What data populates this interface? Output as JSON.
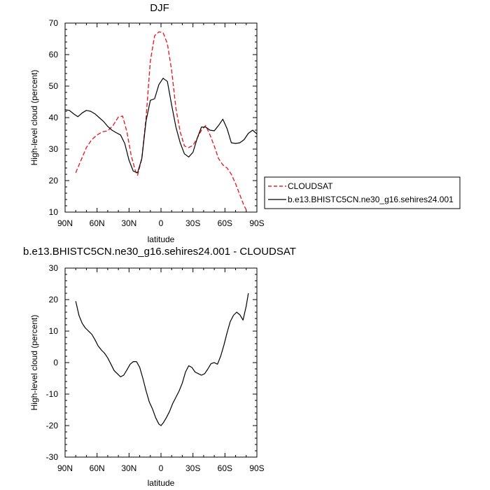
{
  "chart_data": [
    {
      "type": "line",
      "title": "DJF",
      "xlabel": "latitude",
      "ylabel": "High-level cloud (percent)",
      "xlim": [
        90,
        -90
      ],
      "ylim": [
        10,
        70
      ],
      "xticks": [
        90,
        60,
        30,
        0,
        -30,
        -60,
        -90
      ],
      "xtick_labels": [
        "90N",
        "60N",
        "30N",
        "0",
        "30S",
        "60S",
        "90S"
      ],
      "yticks": [
        10,
        20,
        30,
        40,
        50,
        60,
        70
      ],
      "ytick_labels": [
        "10",
        "20",
        "30",
        "40",
        "50",
        "60",
        "70"
      ],
      "grid": false,
      "legend_position": "right",
      "series": [
        {
          "name": "CLOUDSAT",
          "color": "#e8202a",
          "dash": "dashed",
          "x": [
            80,
            75,
            70,
            65,
            60,
            55,
            50,
            45,
            40,
            36,
            32,
            28,
            24,
            22,
            18,
            14,
            10,
            6,
            2,
            -2,
            -6,
            -10,
            -14,
            -18,
            -22,
            -26,
            -30,
            -34,
            -38,
            -42,
            -46,
            -50,
            -54,
            -58,
            -62,
            -66,
            -70,
            -74,
            -78,
            -82
          ],
          "y": [
            22.5,
            26.5,
            30.5,
            33,
            34.5,
            35.5,
            35.8,
            37.5,
            40.2,
            40.5,
            35.5,
            28,
            23,
            21.7,
            27,
            40,
            58,
            66,
            67.2,
            67,
            63.5,
            55,
            43,
            35.5,
            31,
            30.5,
            31.2,
            33.5,
            36,
            37.5,
            34.5,
            31,
            27,
            25,
            24,
            22,
            19,
            15.5,
            12,
            9.5
          ]
        },
        {
          "name": "b.e13.BHISTC5CN.ne30_g16.sehires24.001",
          "color": "#000000",
          "dash": "solid",
          "x": [
            90,
            86,
            82,
            78,
            74,
            70,
            66,
            62,
            58,
            54,
            50,
            46,
            42,
            38,
            34,
            30,
            26,
            22,
            18,
            14,
            10,
            6,
            2,
            -2,
            -6,
            -10,
            -14,
            -18,
            -22,
            -26,
            -30,
            -34,
            -38,
            -42,
            -46,
            -50,
            -54,
            -58,
            -62,
            -66,
            -70,
            -74,
            -78,
            -82,
            -86,
            -90
          ],
          "y": [
            42.5,
            42.3,
            41.2,
            40.3,
            41.5,
            42.3,
            42,
            41.2,
            40,
            38.8,
            37.2,
            36,
            35.2,
            34.5,
            31.8,
            26.5,
            23,
            22.5,
            27,
            39,
            45.5,
            46,
            50.5,
            52.5,
            51.5,
            44,
            37,
            32,
            28.5,
            27.5,
            29,
            33.5,
            37,
            37,
            36,
            35.8,
            37.5,
            39.5,
            36.5,
            32,
            31.8,
            32,
            33,
            35,
            36,
            34.8
          ]
        }
      ]
    },
    {
      "type": "line",
      "title": "b.e13.BHISTC5CN.ne30_g16.sehires24.001 - CLOUDSAT",
      "xlabel": "latitude",
      "ylabel": "High-level cloud (percent)",
      "xlim": [
        90,
        -90
      ],
      "ylim": [
        -30,
        30
      ],
      "xticks": [
        90,
        60,
        30,
        0,
        -30,
        -60,
        -90
      ],
      "xtick_labels": [
        "90N",
        "60N",
        "30N",
        "0",
        "30S",
        "60S",
        "90S"
      ],
      "yticks": [
        -30,
        -20,
        -10,
        0,
        10,
        20,
        30
      ],
      "ytick_labels": [
        "-30",
        "-20",
        "-10",
        "0",
        "10",
        "20",
        "30"
      ],
      "grid": false,
      "series": [
        {
          "color": "#000000",
          "dash": "solid",
          "x": [
            80,
            77,
            74,
            71,
            68,
            65,
            62,
            59,
            56,
            53,
            50,
            47,
            44,
            41,
            38,
            35,
            32,
            29,
            26,
            23,
            20,
            17,
            14,
            11,
            8,
            5,
            2,
            0,
            -2,
            -5,
            -8,
            -11,
            -14,
            -17,
            -20,
            -23,
            -26,
            -29,
            -32,
            -35,
            -38,
            -41,
            -44,
            -47,
            -50,
            -53,
            -56,
            -59,
            -62,
            -65,
            -68,
            -71,
            -74,
            -77,
            -80,
            -82
          ],
          "y": [
            19.5,
            15,
            12.5,
            11,
            10,
            9,
            7.3,
            5.3,
            4,
            3,
            1.5,
            -0.5,
            -2.5,
            -3.5,
            -4.5,
            -4,
            -2.3,
            -0.5,
            0.3,
            0.3,
            -1.5,
            -5,
            -9,
            -12.5,
            -14.7,
            -17.5,
            -19.5,
            -20,
            -19.2,
            -17.5,
            -15.5,
            -13,
            -11,
            -9,
            -6.5,
            -3,
            -1,
            -1.5,
            -3,
            -3.5,
            -4,
            -3.5,
            -2,
            -0.3,
            0,
            -0.5,
            2,
            5.5,
            9.5,
            13,
            15,
            16,
            15.2,
            13.5,
            18,
            22
          ]
        }
      ]
    }
  ],
  "legend": {
    "entries": [
      {
        "label": "CLOUDSAT",
        "color": "#e8202a",
        "dash": "dashed"
      },
      {
        "label": "b.e13.BHISTC5CN.ne30_g16.sehires24.001",
        "color": "#000000",
        "dash": "solid"
      }
    ]
  }
}
